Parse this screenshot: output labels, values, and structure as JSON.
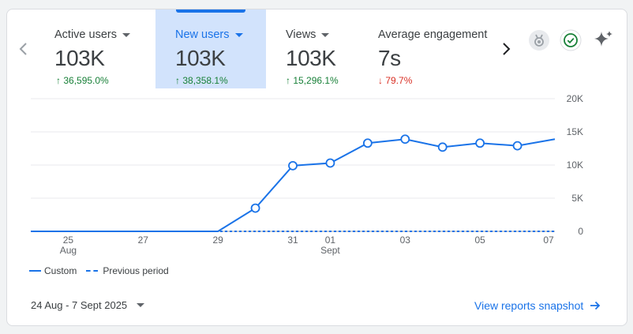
{
  "metrics": [
    {
      "label": "Active users",
      "value": "103K",
      "change": "36,595.0%",
      "direction": "up",
      "arrow": "↑"
    },
    {
      "label": "New users",
      "value": "103K",
      "change": "38,358.1%",
      "direction": "up",
      "arrow": "↑"
    },
    {
      "label": "Views",
      "value": "103K",
      "change": "15,296.1%",
      "direction": "up",
      "arrow": "↑"
    },
    {
      "label": "Average engagement",
      "value": "7s",
      "change": "79.7%",
      "direction": "down",
      "arrow": "↓"
    }
  ],
  "selected_metric": "New users",
  "icons": {
    "prev": "chevron-left-icon",
    "next": "chevron-right-icon",
    "award": "medal-icon",
    "check": "check-circle-icon",
    "insights": "sparkle-icon"
  },
  "chart_data": {
    "type": "line",
    "x_tick_labels": [
      "25",
      "27",
      "29",
      "31",
      "01",
      "03",
      "05",
      "07"
    ],
    "x_month_labels": [
      "Aug",
      "Sept"
    ],
    "y_tick_labels": [
      "20K",
      "15K",
      "10K",
      "5K",
      "0"
    ],
    "ylim": [
      0,
      20000
    ],
    "x": [
      "24 Aug",
      "25 Aug",
      "26 Aug",
      "27 Aug",
      "28 Aug",
      "29 Aug",
      "30 Aug",
      "31 Aug",
      "01 Sept",
      "02 Sept",
      "03 Sept",
      "04 Sept",
      "05 Sept",
      "06 Sept",
      "07 Sept"
    ],
    "series": [
      {
        "name": "Custom",
        "style": "solid",
        "values": [
          0,
          0,
          0,
          0,
          0,
          0,
          3500,
          9900,
          10300,
          13300,
          13900,
          12700,
          13300,
          12900,
          13900
        ],
        "markers": [
          false,
          false,
          false,
          false,
          false,
          false,
          true,
          true,
          true,
          true,
          true,
          true,
          true,
          true,
          false
        ]
      },
      {
        "name": "Previous period",
        "style": "dashed",
        "values": [
          0,
          0,
          0,
          0,
          0,
          0,
          0,
          0,
          0,
          0,
          0,
          0,
          0,
          0,
          0
        ]
      }
    ],
    "legend": [
      "Custom",
      "Previous period"
    ],
    "color": "#1a73e8"
  },
  "footer": {
    "date_range": "24 Aug - 7 Sept 2025",
    "snapshot_link": "View reports snapshot"
  }
}
